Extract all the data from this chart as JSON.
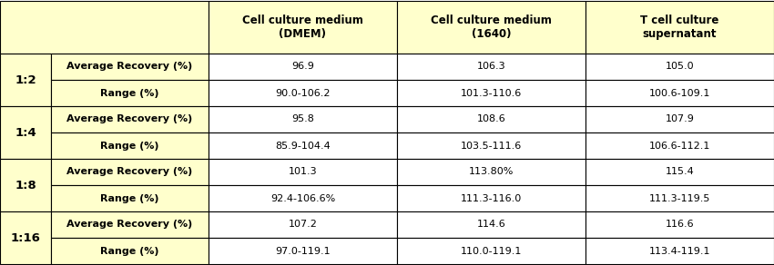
{
  "header_bg": "#FFFFCC",
  "header_text_color": "#000000",
  "col_headers": [
    "Cell culture medium\n(DMEM)",
    "Cell culture medium\n(1640)",
    "T cell culture\nsupernatant"
  ],
  "row_groups": [
    {
      "label": "1:2",
      "rows": [
        [
          "Average Recovery (%)",
          "96.9",
          "106.3",
          "105.0"
        ],
        [
          "Range (%)",
          "90.0-106.2",
          "101.3-110.6",
          "100.6-109.1"
        ]
      ]
    },
    {
      "label": "1:4",
      "rows": [
        [
          "Average Recovery (%)",
          "95.8",
          "108.6",
          "107.9"
        ],
        [
          "Range (%)",
          "85.9-104.4",
          "103.5-111.6",
          "106.6-112.1"
        ]
      ]
    },
    {
      "label": "1:8",
      "rows": [
        [
          "Average Recovery (%)",
          "101.3",
          "113.80%",
          "115.4"
        ],
        [
          "Range (%)",
          "92.4-106.6%",
          "111.3-116.0",
          "111.3-119.5"
        ]
      ]
    },
    {
      "label": "1:16",
      "rows": [
        [
          "Average Recovery (%)",
          "107.2",
          "114.6",
          "116.6"
        ],
        [
          "Range (%)",
          "97.0-119.1",
          "110.0-119.1",
          "113.4-119.1"
        ]
      ]
    }
  ],
  "border_color": "#000000",
  "data_bg": "#FFFFFF",
  "label_bg": "#FFFFCC"
}
